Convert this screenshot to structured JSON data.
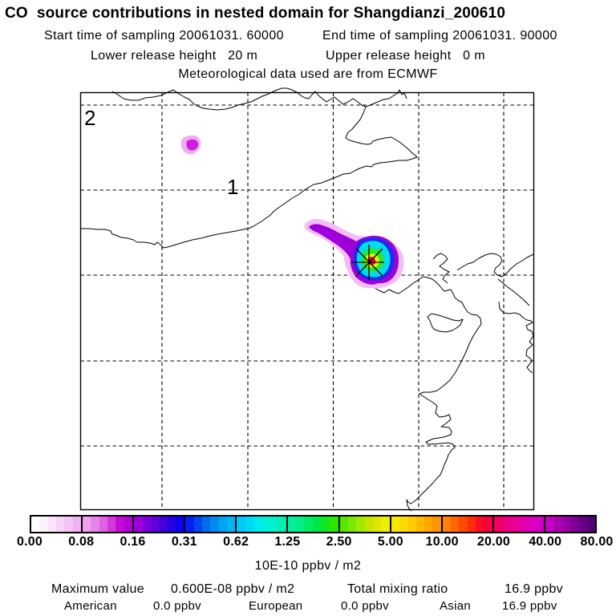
{
  "header": {
    "title": "CO  source contributions in nested domain for Shangdianzi_200610",
    "start_time": "Start time of sampling 20061031. 60000",
    "end_time": "End time of sampling 20061031. 90000",
    "lower_release": "Lower release height   20 m",
    "upper_release": "Upper release height   0 m",
    "met_data": "Meteorological data used are from ECMWF"
  },
  "map": {
    "grid_label_outer": "2",
    "grid_label_inner": "1",
    "plume_colors": {
      "fringe": "#f2bcf6",
      "purple": "#9e00da",
      "blue": "#1c2cee",
      "cyan": "#00dce8",
      "green": "#2ce62c",
      "yellow": "#f0ee00",
      "red": "#f8003c",
      "small_blob_fringe": "#eeaaf2",
      "small_blob_core": "#cc1edd"
    }
  },
  "colorbar": {
    "unit_label": "10E-10 ppbv / m2",
    "tick_labels": [
      "0.00",
      "0.08",
      "0.16",
      "0.31",
      "0.62",
      "1.25",
      "2.50",
      "5.00",
      "10.00",
      "20.00",
      "40.00",
      "80.00"
    ],
    "segments": [
      [
        "#ffffff",
        "#fcf2fc",
        "#fae4fa",
        "#f7d4f7",
        "#f4c4f4",
        "#f1b2f1"
      ],
      [
        "#ee9fee",
        "#e685e8",
        "#de62e2",
        "#d437dc",
        "#c50ad8",
        "#b500d5"
      ],
      [
        "#9b00dc",
        "#8000dc",
        "#6400dc",
        "#4500de",
        "#2600e5",
        "#0c00f0"
      ],
      [
        "#0020f5",
        "#0048ee",
        "#006cee",
        "#008cee",
        "#00a4f0",
        "#00b6f4"
      ],
      [
        "#00c8f8",
        "#00dafa",
        "#00e8f0",
        "#00f0dc",
        "#00f2c6",
        "#00eeb2"
      ],
      [
        "#00f09e",
        "#00ee82",
        "#00ea62",
        "#00e640",
        "#12e61e",
        "#2ce600"
      ],
      [
        "#52e800",
        "#7ce800",
        "#a4e800",
        "#c6e600",
        "#dce600",
        "#eeee00"
      ],
      [
        "#f6ea00",
        "#fcdc00",
        "#ffcc00",
        "#ffba00",
        "#ffa600",
        "#ff9400"
      ],
      [
        "#ff8200",
        "#ff6600",
        "#ff4a00",
        "#ff2a06",
        "#fb0e24",
        "#f60040"
      ],
      [
        "#f30062",
        "#ee0080",
        "#e90096",
        "#e300aa",
        "#dc00bc",
        "#d500c8"
      ],
      [
        "#c300c3",
        "#ad00b5",
        "#9700a7",
        "#810097",
        "#6a0086",
        "#540072"
      ]
    ]
  },
  "footer": {
    "maximum_label": "Maximum value",
    "maximum_value": "0.600E-08 ppbv / m2",
    "total_label": "Total mixing ratio",
    "total_value": "16.9 ppbv",
    "origins": [
      {
        "name": "American",
        "value": "0.0 ppbv"
      },
      {
        "name": "European",
        "value": "0.0 ppbv"
      },
      {
        "name": "Asian",
        "value": "16.9 ppbv"
      }
    ]
  },
  "chart_data": {
    "type": "heatmap",
    "title": "CO source contributions in nested domain for Shangdianzi_200610",
    "subtitle": {
      "sampling_start": "20061031. 60000",
      "sampling_end": "20061031. 90000",
      "lower_release_height_m": 20,
      "upper_release_height_m": 0,
      "meteorological_data": "ECMWF"
    },
    "colorbar": {
      "unit": "10E-10 ppbv / m2",
      "boundaries": [
        0.0,
        0.08,
        0.16,
        0.31,
        0.62,
        1.25,
        2.5,
        5.0,
        10.0,
        20.0,
        40.0,
        80.0
      ],
      "scale": "logarithmic (factor ~2 per step)"
    },
    "maximum_value": "0.600E-08 ppbv / m2",
    "total_mixing_ratio": "16.9 ppbv",
    "source_contributions": [
      {
        "region": "American",
        "value_ppbv": 0.0
      },
      {
        "region": "European",
        "value_ppbv": 0.0
      },
      {
        "region": "Asian",
        "value_ppbv": 16.9
      }
    ],
    "map_annotations": {
      "grid_labels": [
        "2",
        "1"
      ],
      "source_marker": "black asterisk at plume maximum (receptor Shangdianzi)",
      "plume": "high-value core (red/yellow/green/cyan) at marker with purple tail extending northwest; secondary weak purple spot far northwest",
      "grid": "dashed graticule, 5 meridians x 5 parallels inside solid map frame"
    }
  }
}
